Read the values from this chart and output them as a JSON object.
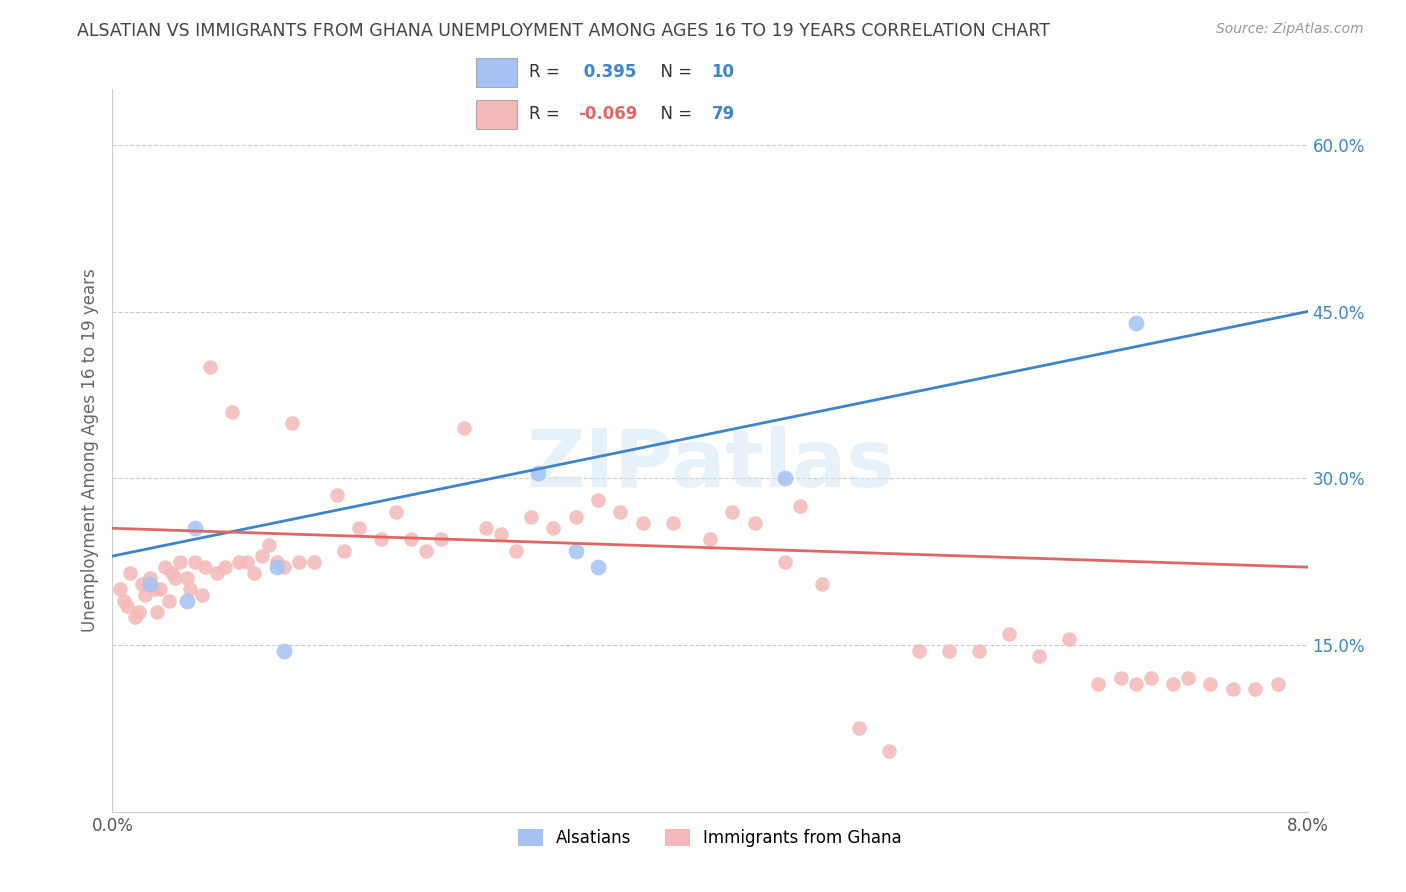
{
  "title": "ALSATIAN VS IMMIGRANTS FROM GHANA UNEMPLOYMENT AMONG AGES 16 TO 19 YEARS CORRELATION CHART",
  "source": "Source: ZipAtlas.com",
  "ylabel": "Unemployment Among Ages 16 to 19 years",
  "xlim": [
    0.0,
    8.0
  ],
  "ylim": [
    0.0,
    65.0
  ],
  "ytick_labels": [
    "15.0%",
    "30.0%",
    "45.0%",
    "60.0%"
  ],
  "ytick_values": [
    15.0,
    30.0,
    45.0,
    60.0
  ],
  "xtick_labels": [
    "0.0%",
    "8.0%"
  ],
  "xtick_values": [
    0.0,
    8.0
  ],
  "legend_labels": [
    "Alsatians",
    "Immigrants from Ghana"
  ],
  "blue_R": 0.395,
  "blue_N": 10,
  "pink_R": -0.069,
  "pink_N": 79,
  "blue_color": "#a4c2f4",
  "pink_color": "#f4b8b8",
  "blue_line_color": "#3d85c8",
  "pink_line_color": "#e06666",
  "background_color": "#ffffff",
  "grid_color": "#cccccc",
  "title_color": "#444444",
  "watermark": "ZIPatlas",
  "blue_line_y0": 23.0,
  "blue_line_y1": 45.0,
  "pink_line_y0": 25.5,
  "pink_line_y1": 22.0,
  "blue_points_x": [
    0.25,
    0.5,
    0.55,
    1.1,
    1.15,
    2.85,
    3.1,
    3.25,
    4.5,
    6.85
  ],
  "blue_points_y": [
    20.5,
    19.0,
    25.5,
    22.0,
    14.5,
    30.5,
    23.5,
    22.0,
    30.0,
    44.0
  ],
  "pink_points_x": [
    0.05,
    0.08,
    0.1,
    0.12,
    0.15,
    0.18,
    0.2,
    0.22,
    0.25,
    0.28,
    0.3,
    0.32,
    0.35,
    0.38,
    0.4,
    0.42,
    0.45,
    0.5,
    0.52,
    0.55,
    0.6,
    0.62,
    0.65,
    0.7,
    0.75,
    0.8,
    0.85,
    0.9,
    0.95,
    1.0,
    1.05,
    1.1,
    1.15,
    1.2,
    1.25,
    1.35,
    1.5,
    1.55,
    1.65,
    1.8,
    1.9,
    2.0,
    2.1,
    2.2,
    2.35,
    2.5,
    2.6,
    2.7,
    2.8,
    2.95,
    3.1,
    3.25,
    3.4,
    3.55,
    3.75,
    4.0,
    4.15,
    4.3,
    4.5,
    4.6,
    4.75,
    5.0,
    5.2,
    5.4,
    5.6,
    5.8,
    6.0,
    6.2,
    6.4,
    6.6,
    6.75,
    6.85,
    6.95,
    7.1,
    7.2,
    7.35,
    7.5,
    7.65,
    7.8
  ],
  "pink_points_y": [
    20.0,
    19.0,
    18.5,
    21.5,
    17.5,
    18.0,
    20.5,
    19.5,
    21.0,
    20.0,
    18.0,
    20.0,
    22.0,
    19.0,
    21.5,
    21.0,
    22.5,
    21.0,
    20.0,
    22.5,
    19.5,
    22.0,
    40.0,
    21.5,
    22.0,
    36.0,
    22.5,
    22.5,
    21.5,
    23.0,
    24.0,
    22.5,
    22.0,
    35.0,
    22.5,
    22.5,
    28.5,
    23.5,
    25.5,
    24.5,
    27.0,
    24.5,
    23.5,
    24.5,
    34.5,
    25.5,
    25.0,
    23.5,
    26.5,
    25.5,
    26.5,
    28.0,
    27.0,
    26.0,
    26.0,
    24.5,
    27.0,
    26.0,
    22.5,
    27.5,
    20.5,
    7.5,
    5.5,
    14.5,
    14.5,
    14.5,
    16.0,
    14.0,
    15.5,
    11.5,
    12.0,
    11.5,
    12.0,
    11.5,
    12.0,
    11.5,
    11.0,
    11.0,
    11.5
  ]
}
